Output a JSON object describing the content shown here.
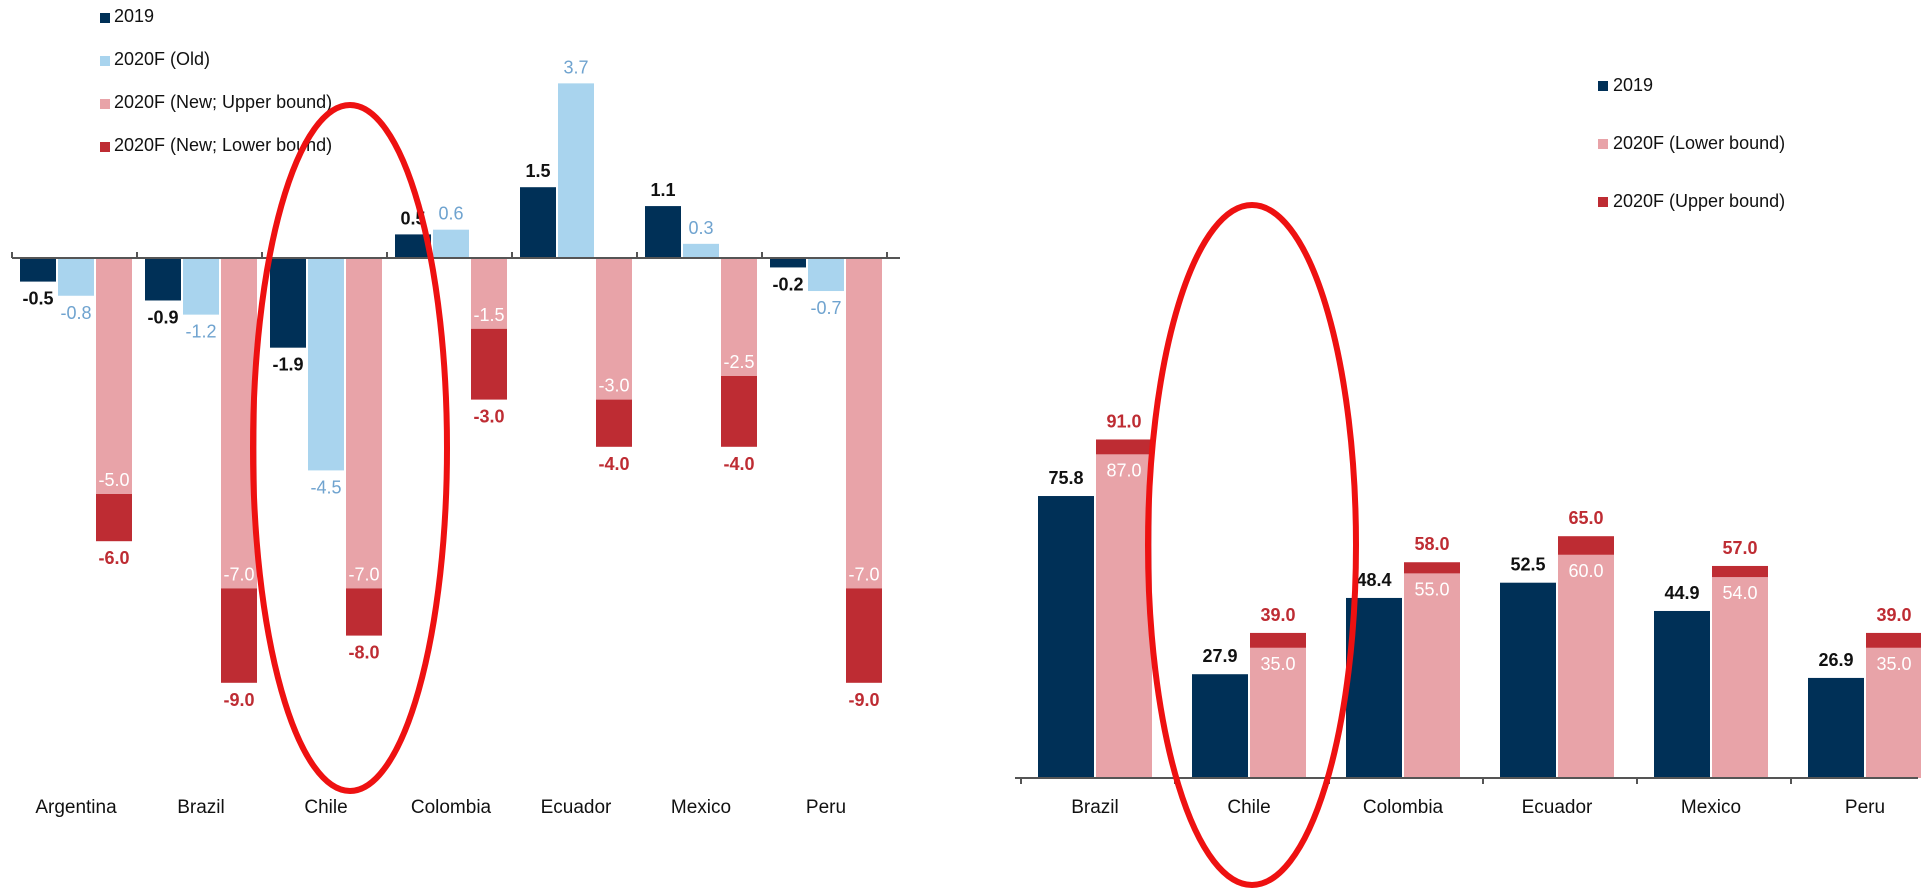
{
  "colors": {
    "c2019": "#003057",
    "old": "#a9d4ee",
    "light_red": "#e8a3a8",
    "dark_red": "#be2c33",
    "label_light_blue": "#6fa3cf",
    "axis": "#555555",
    "circle": "#ee1111",
    "text": "#111111"
  },
  "chart_data": [
    {
      "type": "bar",
      "categories": [
        "Argentina",
        "Brazil",
        "Chile",
        "Colombia",
        "Ecuador",
        "Mexico",
        "Peru"
      ],
      "legend_position": "top-left",
      "grid": false,
      "ylim": [
        -10,
        4.5
      ],
      "series": [
        {
          "name": "2019",
          "values": [
            -0.5,
            -0.9,
            -1.9,
            0.5,
            1.5,
            1.1,
            -0.2
          ]
        },
        {
          "name": "2020F  (Old)",
          "values": [
            -0.8,
            -1.2,
            -4.5,
            0.6,
            3.7,
            0.3,
            -0.7
          ]
        },
        {
          "name": "2020F  (New; Upper bound)",
          "values": [
            -5.0,
            -7.0,
            -7.0,
            -1.5,
            -3.0,
            -2.5,
            -7.0
          ]
        },
        {
          "name": "2020F  (New; Lower bound)",
          "values": [
            -6.0,
            -9.0,
            -8.0,
            -3.0,
            -4.0,
            -4.0,
            -9.0
          ]
        }
      ],
      "value_labels": [
        [
          "-0.5",
          "-0.8",
          "-5.0",
          "-6.0"
        ],
        [
          "-0.9",
          "-1.2",
          "-7.0",
          "-9.0"
        ],
        [
          "-1.9",
          "-4.5",
          "-7.0",
          "-8.0"
        ],
        [
          "0.5",
          "0.6",
          "-1.5",
          "-3.0"
        ],
        [
          "1.5",
          "3.7",
          "-3.0",
          "-4.0"
        ],
        [
          "1.1",
          "0.3",
          "-2.5",
          "-4.0"
        ],
        [
          "-0.2",
          "-0.7",
          "-7.0",
          "-9.0"
        ]
      ],
      "highlighted_category": "Chile"
    },
    {
      "type": "bar",
      "categories": [
        "Brazil",
        "Chile",
        "Colombia",
        "Ecuador",
        "Mexico",
        "Peru"
      ],
      "legend_position": "top-right",
      "grid": false,
      "ylim": [
        0,
        100
      ],
      "series": [
        {
          "name": "2019",
          "values": [
            75.8,
            27.9,
            48.4,
            52.5,
            44.9,
            26.9
          ]
        },
        {
          "name": "2020F (Lower bound)",
          "values": [
            87.0,
            35.0,
            55.0,
            60.0,
            54.0,
            35.0
          ]
        },
        {
          "name": "2020F (Upper bound)",
          "values": [
            91.0,
            39.0,
            58.0,
            65.0,
            57.0,
            39.0
          ]
        }
      ],
      "value_labels": [
        [
          "75.8",
          "87.0",
          "91.0"
        ],
        [
          "27.9",
          "35.0",
          "39.0"
        ],
        [
          "48.4",
          "55.0",
          "58.0"
        ],
        [
          "52.5",
          "60.0",
          "65.0"
        ],
        [
          "44.9",
          "54.0",
          "57.0"
        ],
        [
          "26.9",
          "35.0",
          "39.0"
        ]
      ],
      "highlighted_category": "Chile"
    }
  ]
}
